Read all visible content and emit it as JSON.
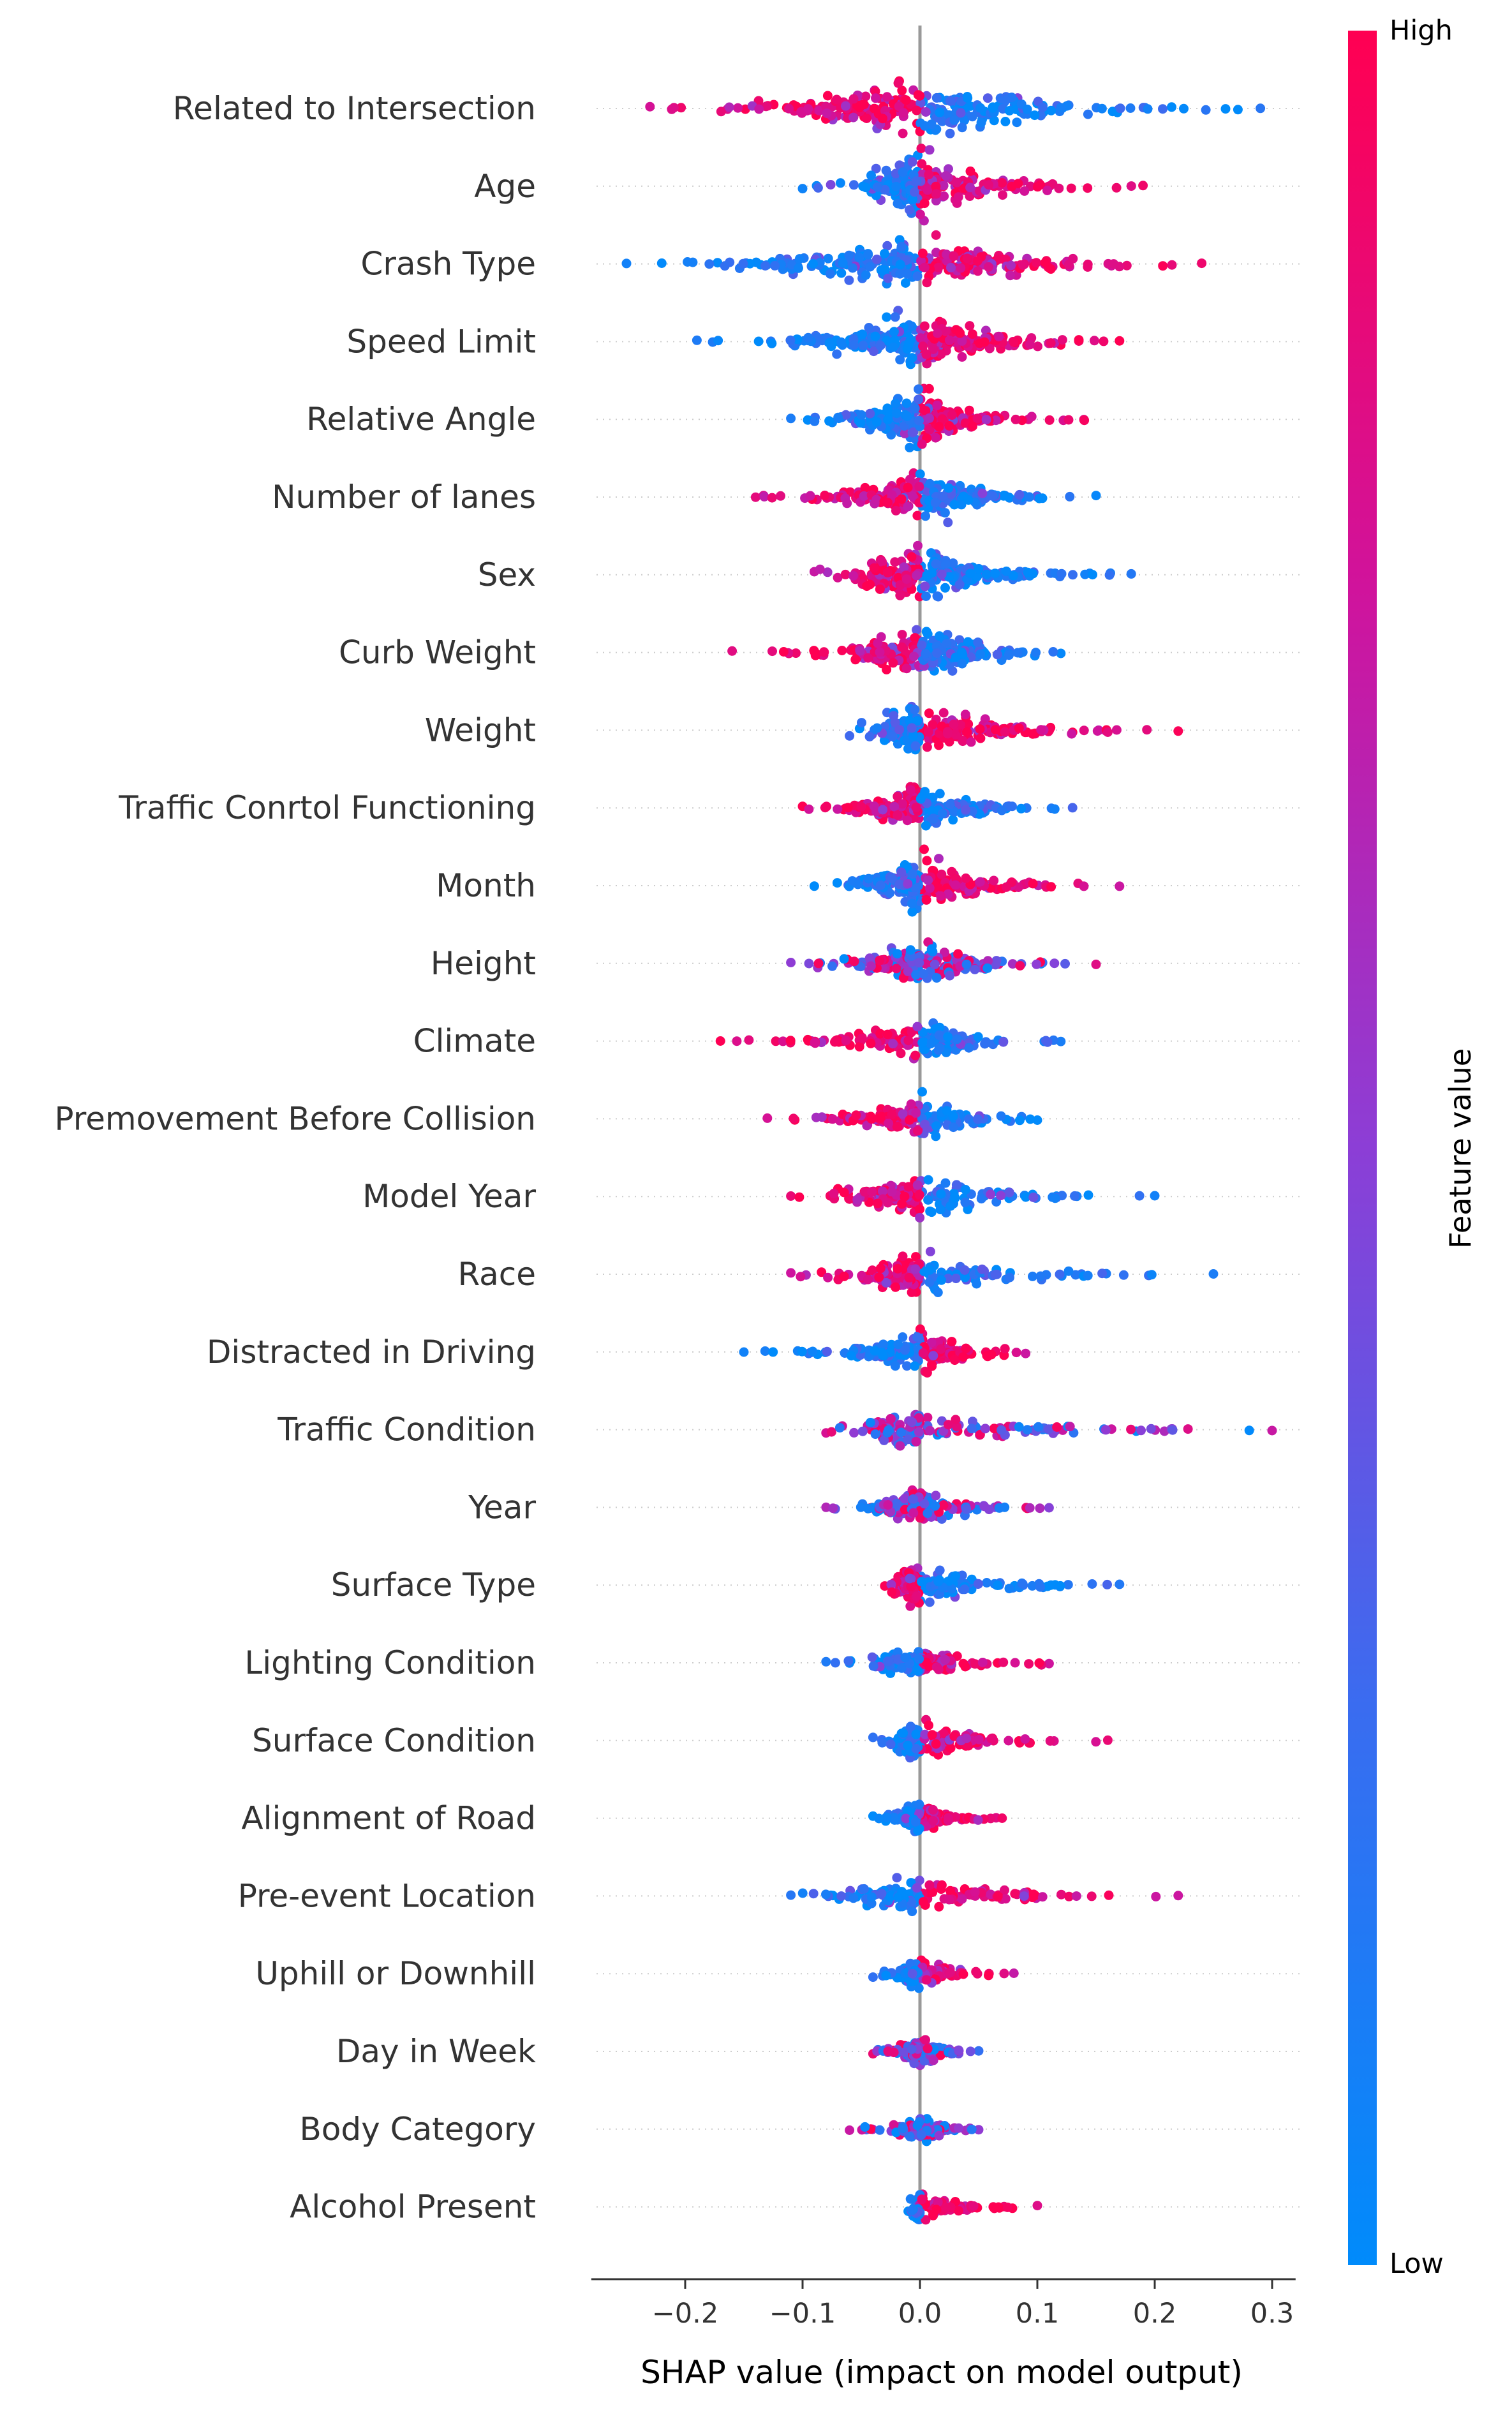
{
  "chart_data": {
    "type": "scatter",
    "subtype": "shap-beeswarm",
    "title": "",
    "xlabel": "SHAP value (impact on model output)",
    "xlim": [
      -0.28,
      0.32
    ],
    "xticks": [
      -0.2,
      -0.1,
      0.0,
      0.1,
      0.2,
      0.3
    ],
    "xtick_labels": [
      "−0.2",
      "−0.1",
      "0.0",
      "0.1",
      "0.2",
      "0.3"
    ],
    "colorbar": {
      "title": "Feature value",
      "high_label": "High",
      "low_label": "Low",
      "low_color": "#008bfb",
      "high_color": "#ff0052"
    },
    "features": [
      {
        "name": "Related to Intersection",
        "min": -0.23,
        "max": 0.29,
        "low_side": "right",
        "density": 1.0
      },
      {
        "name": "Age",
        "min": -0.1,
        "max": 0.19,
        "low_side": "left",
        "density": 0.9
      },
      {
        "name": "Crash Type",
        "min": -0.25,
        "max": 0.24,
        "low_side": "left",
        "density": 0.95
      },
      {
        "name": "Speed Limit",
        "min": -0.19,
        "max": 0.17,
        "low_side": "left",
        "density": 1.0
      },
      {
        "name": "Relative Angle",
        "min": -0.11,
        "max": 0.14,
        "low_side": "left",
        "density": 0.85
      },
      {
        "name": "Number of lanes",
        "min": -0.14,
        "max": 0.15,
        "low_side": "right",
        "density": 0.8
      },
      {
        "name": "Sex",
        "min": -0.09,
        "max": 0.18,
        "low_side": "right",
        "density": 0.85
      },
      {
        "name": "Curb Weight",
        "min": -0.16,
        "max": 0.12,
        "low_side": "right",
        "density": 0.85
      },
      {
        "name": "Weight",
        "min": -0.06,
        "max": 0.22,
        "low_side": "left",
        "density": 0.7
      },
      {
        "name": "Traffic Conrtol Functioning",
        "min": -0.1,
        "max": 0.13,
        "low_side": "right",
        "density": 0.7
      },
      {
        "name": "Month",
        "min": -0.09,
        "max": 0.17,
        "low_side": "left",
        "density": 0.75
      },
      {
        "name": "Height",
        "min": -0.11,
        "max": 0.15,
        "low_side": "mixed",
        "density": 0.6
      },
      {
        "name": "Climate",
        "min": -0.17,
        "max": 0.12,
        "low_side": "right",
        "density": 0.6
      },
      {
        "name": "Premovement Before Collision",
        "min": -0.13,
        "max": 0.1,
        "low_side": "right",
        "density": 0.6
      },
      {
        "name": "Model Year",
        "min": -0.11,
        "max": 0.2,
        "low_side": "right",
        "density": 0.55
      },
      {
        "name": "Race",
        "min": -0.11,
        "max": 0.25,
        "low_side": "right",
        "density": 0.5
      },
      {
        "name": "Distracted in Driving",
        "min": -0.15,
        "max": 0.09,
        "low_side": "left",
        "density": 0.55
      },
      {
        "name": "Traffic Condition",
        "min": -0.08,
        "max": 0.3,
        "low_side": "mixed",
        "density": 0.5
      },
      {
        "name": "Year",
        "min": -0.08,
        "max": 0.11,
        "low_side": "mixed",
        "density": 0.5
      },
      {
        "name": "Surface Type",
        "min": -0.03,
        "max": 0.17,
        "low_side": "right",
        "density": 0.5
      },
      {
        "name": "Lighting Condition",
        "min": -0.08,
        "max": 0.11,
        "low_side": "left",
        "density": 0.45
      },
      {
        "name": "Surface Condition",
        "min": -0.04,
        "max": 0.16,
        "low_side": "left",
        "density": 0.45
      },
      {
        "name": "Alignment of Road",
        "min": -0.04,
        "max": 0.07,
        "low_side": "left",
        "density": 0.4
      },
      {
        "name": "Pre-event Location",
        "min": -0.11,
        "max": 0.22,
        "low_side": "left",
        "density": 0.45
      },
      {
        "name": "Uphill or Downhill",
        "min": -0.04,
        "max": 0.08,
        "low_side": "left",
        "density": 0.35
      },
      {
        "name": "Day in Week",
        "min": -0.04,
        "max": 0.05,
        "low_side": "mixed",
        "density": 0.35
      },
      {
        "name": "Body Category",
        "min": -0.06,
        "max": 0.05,
        "low_side": "mixed",
        "density": 0.3
      },
      {
        "name": "Alcohol Present",
        "min": -0.01,
        "max": 0.1,
        "low_side": "left",
        "density": 0.3
      }
    ]
  }
}
